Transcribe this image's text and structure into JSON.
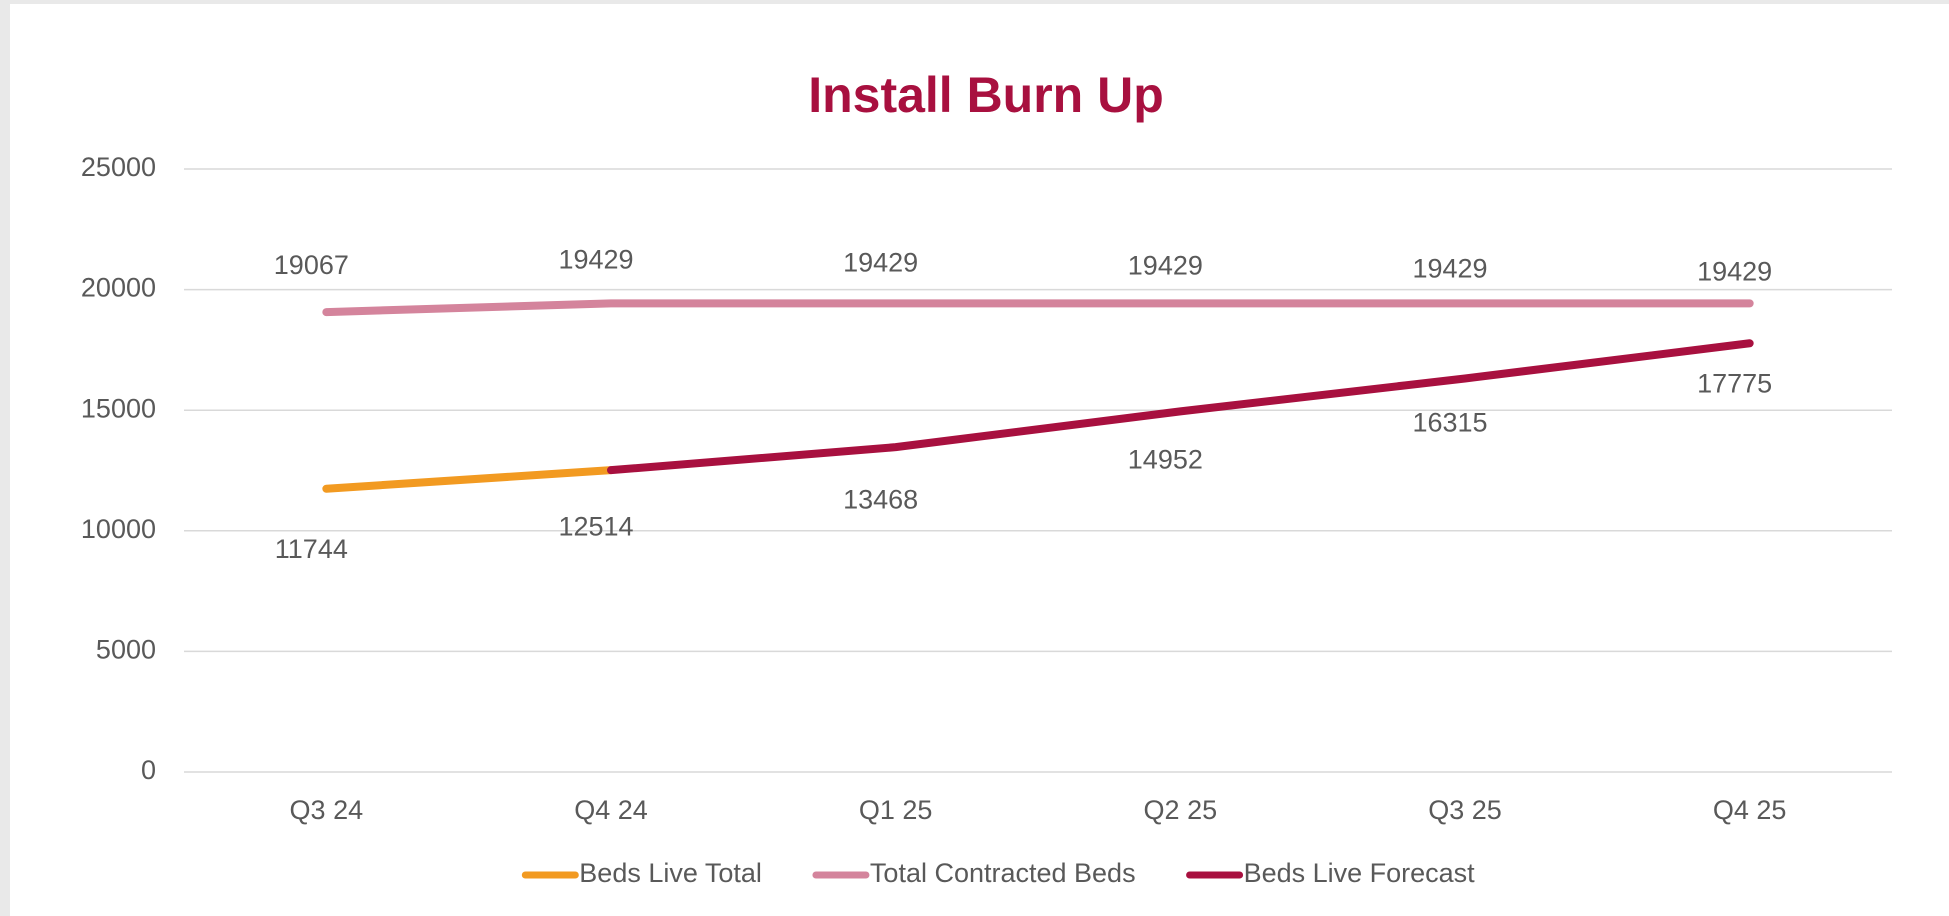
{
  "chart_data": {
    "type": "line",
    "title": "Install Burn Up",
    "categories": [
      "Q3 24",
      "Q4 24",
      "Q1 25",
      "Q2 25",
      "Q3 25",
      "Q4 25"
    ],
    "series": [
      {
        "name": "Beds Live Total",
        "color": "#f29a21",
        "values": [
          11744,
          12514,
          null,
          null,
          null,
          null
        ]
      },
      {
        "name": "Total Contracted Beds",
        "color": "#d4849c",
        "values": [
          19067,
          19429,
          19429,
          19429,
          19429,
          19429
        ]
      },
      {
        "name": "Beds Live Forecast",
        "color": "#a8103f",
        "values": [
          null,
          12514,
          13468,
          14952,
          16315,
          17775
        ]
      }
    ],
    "ylim": [
      0,
      25000
    ],
    "yticks": [
      0,
      5000,
      10000,
      15000,
      20000,
      25000
    ],
    "grid": true,
    "legend": "bottom"
  }
}
